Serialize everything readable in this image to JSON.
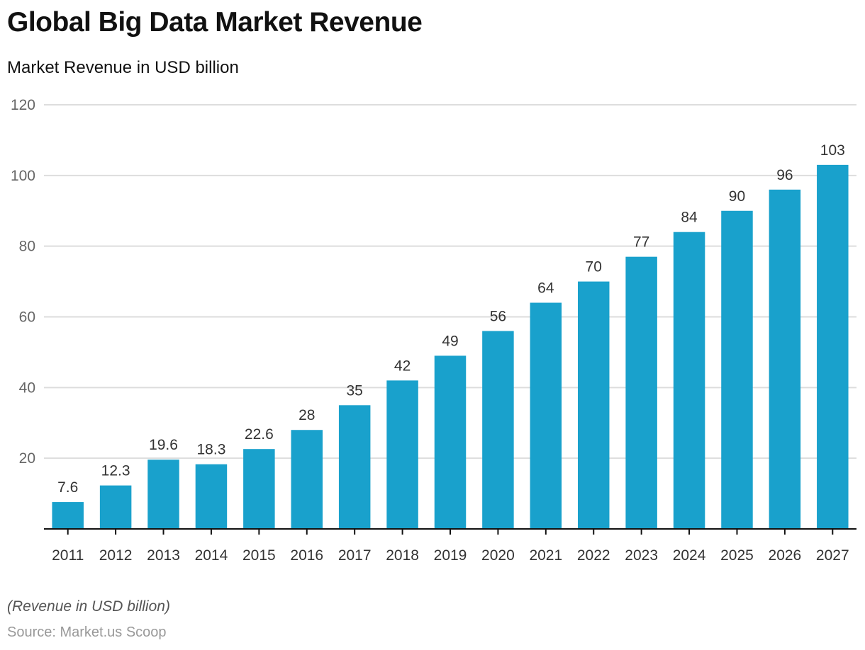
{
  "chart_data": {
    "type": "bar",
    "title": "Global Big Data Market Revenue",
    "subtitle": "Market Revenue in USD billion",
    "xlabel": "",
    "ylabel": "",
    "categories": [
      "2011",
      "2012",
      "2013",
      "2014",
      "2015",
      "2016",
      "2017",
      "2018",
      "2019",
      "2020",
      "2021",
      "2022",
      "2023",
      "2024",
      "2025",
      "2026",
      "2027"
    ],
    "values": [
      7.6,
      12.3,
      19.6,
      18.3,
      22.6,
      28,
      35,
      42,
      49,
      56,
      64,
      70,
      77,
      84,
      90,
      96,
      103
    ],
    "value_labels": [
      "7.6",
      "12.3",
      "19.6",
      "18.3",
      "22.6",
      "28",
      "35",
      "42",
      "49",
      "56",
      "64",
      "70",
      "77",
      "84",
      "90",
      "96",
      "103"
    ],
    "ylim": [
      0,
      120
    ],
    "yticks": [
      20,
      40,
      60,
      80,
      100,
      120
    ],
    "grid": true,
    "legend": "none",
    "bar_color": "#19a1cc",
    "note": "(Revenue in USD billion)",
    "source": "Source: Market.us Scoop"
  }
}
